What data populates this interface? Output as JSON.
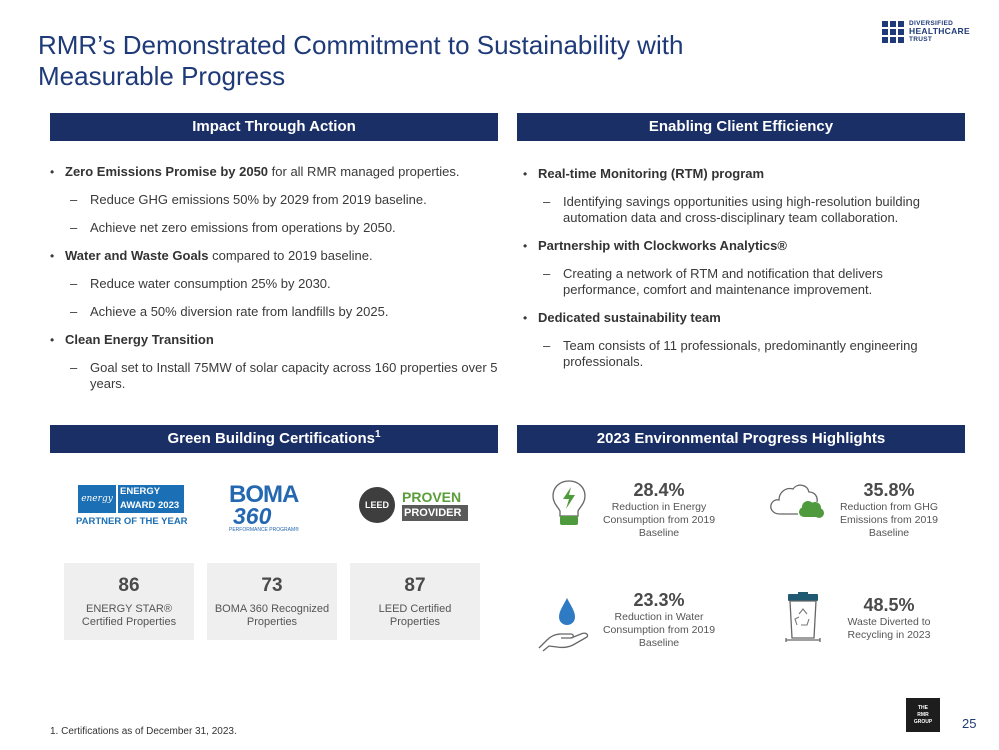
{
  "page": {
    "title": "RMR’s Demonstrated Commitment to Sustainability with Measurable Progress",
    "page_number": "25",
    "footnote": "1.    Certifications as of December 31, 2023."
  },
  "brand": {
    "logo_line1": "DIVERSIFIED",
    "logo_line2": "HEALTHCARE",
    "logo_line3": "TRUST",
    "rmr_line1": "THE",
    "rmr_line2": "RMR",
    "rmr_line3": "GROUP",
    "navy": "#1a2f66",
    "green": "#4e9a3c",
    "blue": "#2e7bc4"
  },
  "impact": {
    "header": "Impact Through Action",
    "b1_bold": "Zero Emissions Promise by 2050",
    "b1_rest": " for all RMR managed properties.",
    "b1_s1": "Reduce GHG emissions 50% by 2029 from 2019 baseline.",
    "b1_s2": "Achieve net zero emissions from operations by 2050.",
    "b2_bold": "Water and Waste Goals",
    "b2_rest": " compared to 2019 baseline.",
    "b2_s1": "Reduce water consumption 25% by 2030.",
    "b2_s2": "Achieve a 50% diversion rate from landfills by 2025.",
    "b3_bold": "Clean Energy Transition",
    "b3_s1": "Goal set to Install 75MW of solar capacity across 160 properties over 5 years."
  },
  "efficiency": {
    "header": "Enabling Client Efficiency",
    "b1_bold": "Real-time Monitoring (RTM) program",
    "b1_s1": "Identifying savings opportunities using high-resolution building automation data and cross-disciplinary team collaboration.",
    "b2_bold": "Partnership with Clockworks Analytics®",
    "b2_s1": "Creating a network of RTM and notification that delivers performance, comfort and maintenance improvement.",
    "b3_bold": "Dedicated sustainability team",
    "b3_s1": "Team consists of 11 professionals, predominantly engineering professionals."
  },
  "certifications": {
    "header": "Green Building Certifications",
    "header_sup": "1",
    "energy_star_logo": {
      "line1": "ENERGY STAR",
      "line2": "AWARD 2023",
      "line3": "PARTNER OF THE YEAR",
      "script": "energy"
    },
    "boma_logo": {
      "line1": "BOMA",
      "line2": "360",
      "line3": "PERFORMANCE PROGRAM®"
    },
    "leed_logo": {
      "badge": "LEED",
      "line1": "PROVEN",
      "line2": "PROVIDER"
    },
    "stats": [
      {
        "value": "86",
        "label": "ENERGY STAR® Certified Properties"
      },
      {
        "value": "73",
        "label": "BOMA 360 Recognized Properties"
      },
      {
        "value": "87",
        "label": "LEED Certified Properties"
      }
    ]
  },
  "highlights": {
    "header": "2023 Environmental Progress Highlights",
    "items": [
      {
        "value": "28.4%",
        "label": "Reduction in Energy Consumption from 2019 Baseline",
        "icon": "lightbulb-icon"
      },
      {
        "value": "35.8%",
        "label": "Reduction from GHG Emissions from 2019 Baseline",
        "icon": "cloud-leaf-icon"
      },
      {
        "value": "23.3%",
        "label": "Reduction in Water Consumption  from 2019 Baseline",
        "icon": "water-drop-hand-icon"
      },
      {
        "value": "48.5%",
        "label": "Waste Diverted to Recycling in 2023",
        "icon": "recycle-bin-icon"
      }
    ]
  }
}
